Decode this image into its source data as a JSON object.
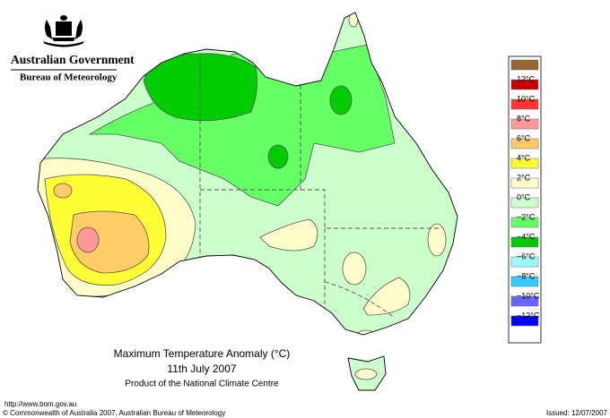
{
  "header": {
    "government": "Australian Government",
    "bureau": "Bureau of Meteorology"
  },
  "legend": {
    "labels": [
      "12°C",
      "10°C",
      "8°C",
      "6°C",
      "4°C",
      "2°C",
      "0°C",
      "−2°C",
      "−4°C",
      "−6°C",
      "−8°C",
      "−10°C",
      "−12°C"
    ]
  },
  "title": {
    "line1": "Maximum Temperature Anomaly (°C)",
    "line2": "11th July 2007",
    "line3": "Product of the National Climate Centre"
  },
  "footer": {
    "url": "http://www.bom.gov.au",
    "copyright": "© Commonwealth of Australia 2007, Australian Bureau of Meteorology",
    "issued": "Issued: 12/07/2007"
  }
}
